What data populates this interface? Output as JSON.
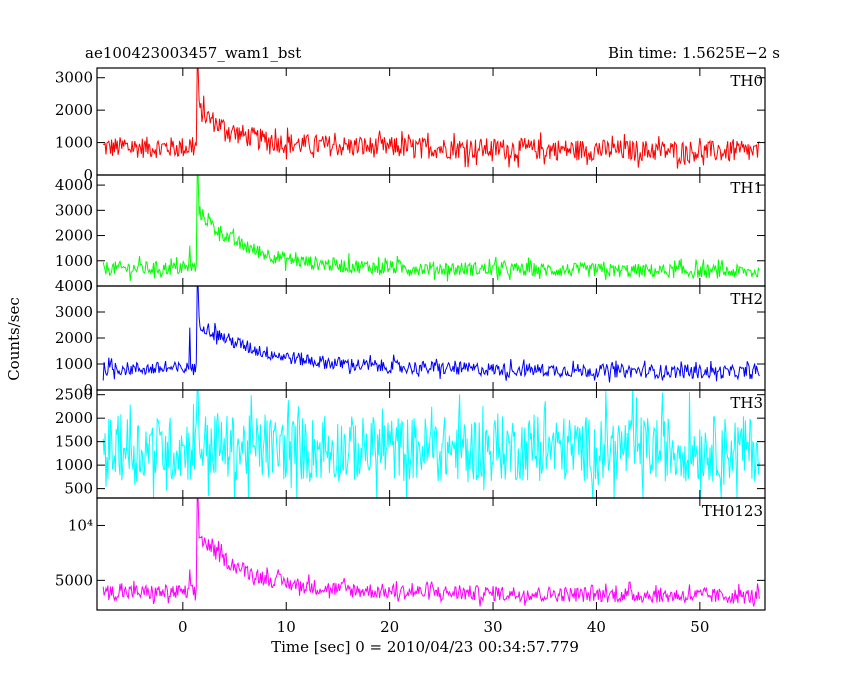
{
  "header": {
    "left": "ae100423003457_wam1_bst",
    "right": "Bin time: 1.5625E−2 s"
  },
  "axes": {
    "xlabel": "Time [sec] 0 = 2010/04/23 00:34:57.779",
    "ylabel": "Counts/sec"
  },
  "chart_data": {
    "type": "line",
    "shared_x": true,
    "xlim": [
      -8.3,
      56.3
    ],
    "x_ticks": [
      0,
      10,
      20,
      30,
      40,
      50
    ],
    "x_tick_labels": [
      "0",
      "10",
      "20",
      "30",
      "40",
      "50"
    ],
    "panels": [
      {
        "name": "TH0",
        "color": "#ff0000",
        "ylim": [
          0,
          3300
        ],
        "y_ticks": [
          0,
          1000,
          2000,
          3000
        ],
        "y_tick_labels": [
          "0",
          "1000",
          "2000",
          "3000"
        ],
        "profile": {
          "base": 850,
          "noise": 330,
          "precursor": 1100,
          "peak": 3300,
          "decay_amp": 1100,
          "decay_tau": 3.5,
          "tail_slope": -4
        }
      },
      {
        "name": "TH1",
        "color": "#00ff00",
        "ylim": [
          0,
          4400
        ],
        "y_ticks": [
          0,
          1000,
          2000,
          3000,
          4000
        ],
        "y_tick_labels": [
          "0",
          "1000",
          "2000",
          "3000",
          "4000"
        ],
        "profile": {
          "base": 700,
          "noise": 280,
          "precursor": 1600,
          "peak": 4400,
          "decay_amp": 2200,
          "decay_tau": 4.5,
          "tail_slope": -4
        }
      },
      {
        "name": "TH2",
        "color": "#0000ff",
        "ylim": [
          0,
          4000
        ],
        "y_ticks": [
          0,
          1000,
          2000,
          3000,
          4000
        ],
        "y_tick_labels": [
          "0",
          "1000",
          "2000",
          "3000",
          "4000"
        ],
        "profile": {
          "base": 820,
          "noise": 260,
          "precursor": 2400,
          "peak": 4000,
          "decay_amp": 1700,
          "decay_tau": 6,
          "tail_slope": -4
        }
      },
      {
        "name": "TH3",
        "color": "#00ffff",
        "ylim": [
          300,
          2600
        ],
        "y_ticks": [
          500,
          1000,
          1500,
          2000,
          2500
        ],
        "y_tick_labels": [
          "500",
          "1000",
          "1500",
          "2000",
          "2500"
        ],
        "profile": {
          "base": 1350,
          "noise": 700,
          "precursor": 0,
          "peak": 2600,
          "decay_amp": 100,
          "decay_tau": 2,
          "tail_slope": 0
        }
      },
      {
        "name": "TH0123",
        "color": "#ff00ff",
        "ylim": [
          2300,
          12500
        ],
        "y_ticks": [
          5000,
          10000
        ],
        "y_tick_labels": [
          "5000",
          "10⁴"
        ],
        "profile": {
          "base": 3900,
          "noise": 700,
          "precursor": 6000,
          "peak": 12500,
          "decay_amp": 5000,
          "decay_tau": 4.5,
          "tail_slope": -10
        }
      }
    ]
  }
}
